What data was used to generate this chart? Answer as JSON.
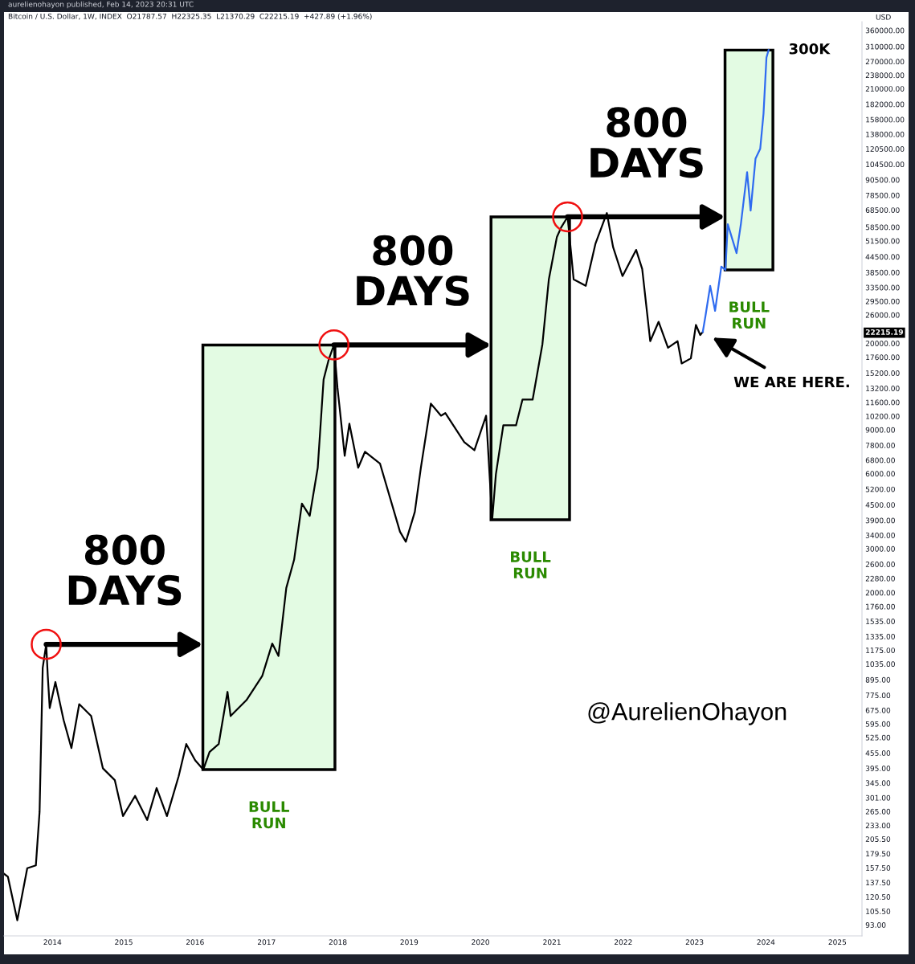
{
  "chart_data": {
    "type": "line",
    "title": "Bitcoin / U.S. Dollar, 1W, INDEX  O21787.57  H22325.35  L21370.29  C22215.19  +427.89 (+1.96%)",
    "subtitle": "aurelienohayon published, Feb 14, 2023 20:31 UTC",
    "ylabel": "USD",
    "log": "y",
    "grid": false,
    "line_style": "solid",
    "marker": "none",
    "xlim": [
      "2013-04-28",
      "2025-05-07"
    ],
    "xticks": [
      "2014",
      "2015",
      "2016",
      "2017",
      "2018",
      "2019",
      "2020",
      "2021",
      "2022",
      "2023",
      "2024",
      "2025"
    ],
    "ylim": [
      84,
      390000
    ],
    "yticks": [
      {
        "value": 360000,
        "label": "360000.00"
      },
      {
        "value": 310000,
        "label": "310000.00"
      },
      {
        "value": 270000,
        "label": "270000.00"
      },
      {
        "value": 238000,
        "label": "238000.00"
      },
      {
        "value": 210000,
        "label": "210000.00"
      },
      {
        "value": 182000,
        "label": "182000.00"
      },
      {
        "value": 158000,
        "label": "158000.00"
      },
      {
        "value": 138000,
        "label": "138000.00"
      },
      {
        "value": 120500,
        "label": "120500.00"
      },
      {
        "value": 104500,
        "label": "104500.00"
      },
      {
        "value": 90500,
        "label": "90500.00"
      },
      {
        "value": 78500,
        "label": "78500.00"
      },
      {
        "value": 68500,
        "label": "68500.00"
      },
      {
        "value": 58500,
        "label": "58500.00"
      },
      {
        "value": 51500,
        "label": "51500.00"
      },
      {
        "value": 44500,
        "label": "44500.00"
      },
      {
        "value": 38500,
        "label": "38500.00"
      },
      {
        "value": 33500,
        "label": "33500.00"
      },
      {
        "value": 29500,
        "label": "29500.00"
      },
      {
        "value": 26000,
        "label": "26000.00"
      },
      {
        "value": 22215.19,
        "label": "22215.19"
      },
      {
        "value": 20000,
        "label": "20000.00"
      },
      {
        "value": 17600,
        "label": "17600.00"
      },
      {
        "value": 15200,
        "label": "15200.00"
      },
      {
        "value": 13200,
        "label": "13200.00"
      },
      {
        "value": 11600,
        "label": "11600.00"
      },
      {
        "value": 10200,
        "label": "10200.00"
      },
      {
        "value": 9000,
        "label": "9000.00"
      },
      {
        "value": 7800,
        "label": "7800.00"
      },
      {
        "value": 6800,
        "label": "6800.00"
      },
      {
        "value": 6000,
        "label": "6000.00"
      },
      {
        "value": 5200,
        "label": "5200.00"
      },
      {
        "value": 4500,
        "label": "4500.00"
      },
      {
        "value": 3900,
        "label": "3900.00"
      },
      {
        "value": 3400,
        "label": "3400.00"
      },
      {
        "value": 3000,
        "label": "3000.00"
      },
      {
        "value": 2600,
        "label": "2600.00"
      },
      {
        "value": 2280,
        "label": "2280.00"
      },
      {
        "value": 2000,
        "label": "2000.00"
      },
      {
        "value": 1760,
        "label": "1760.00"
      },
      {
        "value": 1535,
        "label": "1535.00"
      },
      {
        "value": 1335,
        "label": "1335.00"
      },
      {
        "value": 1175,
        "label": "1175.00"
      },
      {
        "value": 1035,
        "label": "1035.00"
      },
      {
        "value": 895,
        "label": "895.00"
      },
      {
        "value": 775,
        "label": "775.00"
      },
      {
        "value": 675,
        "label": "675.00"
      },
      {
        "value": 595,
        "label": "595.00"
      },
      {
        "value": 525,
        "label": "525.00"
      },
      {
        "value": 455,
        "label": "455.00"
      },
      {
        "value": 395,
        "label": "395.00"
      },
      {
        "value": 345,
        "label": "345.00"
      },
      {
        "value": 301,
        "label": "301.00"
      },
      {
        "value": 265,
        "label": "265.00"
      },
      {
        "value": 233,
        "label": "233.00"
      },
      {
        "value": 205.5,
        "label": "205.50"
      },
      {
        "value": 179.5,
        "label": "179.50"
      },
      {
        "value": 157.5,
        "label": "157.50"
      },
      {
        "value": 137.5,
        "label": "137.50"
      },
      {
        "value": 120.5,
        "label": "120.50"
      },
      {
        "value": 105.5,
        "label": "105.50"
      },
      {
        "value": 93,
        "label": "93.00"
      }
    ],
    "series": [
      {
        "color": "#000000",
        "x": [
          "2013-04-28",
          "2013-05-18",
          "2013-07-05",
          "2013-08-25",
          "2013-10-08",
          "2013-10-27",
          "2013-11-12",
          "2013-11-30",
          "2013-12-08",
          "2013-12-18",
          "2014-01-16",
          "2014-02-27",
          "2014-04-08",
          "2014-05-18",
          "2014-07-18",
          "2014-09-16",
          "2014-11-16",
          "2014-12-28",
          "2015-02-28",
          "2015-05-01",
          "2015-06-18",
          "2015-08-10",
          "2015-10-09",
          "2015-11-17",
          "2016-01-01",
          "2016-02-12",
          "2016-03-15",
          "2016-05-01",
          "2016-06-15",
          "2016-07-01",
          "2016-09-20",
          "2016-12-10",
          "2017-01-30",
          "2017-03-03",
          "2017-04-12",
          "2017-05-22",
          "2017-07-01",
          "2017-08-10",
          "2017-09-20",
          "2017-10-20",
          "2017-11-15",
          "2017-12-12",
          "2017-12-30",
          "2018-01-10",
          "2018-02-05",
          "2018-03-01",
          "2018-04-15",
          "2018-05-20",
          "2018-08-05",
          "2018-11-15",
          "2018-12-15",
          "2019-01-30",
          "2019-03-02",
          "2019-04-22",
          "2019-06-13",
          "2019-07-05",
          "2019-10-10",
          "2019-12-01",
          "2020-01-30",
          "2020-03-01",
          "2020-03-20",
          "2020-04-27",
          "2020-07-01",
          "2020-08-03",
          "2020-09-24",
          "2020-11-13",
          "2020-12-16",
          "2021-01-26",
          "2021-02-17",
          "2021-03-22",
          "2021-04-22",
          "2021-06-23",
          "2021-08-12",
          "2021-10-09",
          "2021-11-10",
          "2021-12-28",
          "2022-03-08",
          "2022-04-08",
          "2022-05-19",
          "2022-07-01",
          "2022-08-18",
          "2022-10-06",
          "2022-10-27",
          "2022-12-13",
          "2023-01-08",
          "2023-01-30",
          "2023-02-12"
        ],
        "values": [
          149,
          145,
          97,
          157,
          161,
          264,
          998,
          1240,
          927,
          689,
          876,
          617,
          476,
          714,
          640,
          395,
          354,
          254,
          306,
          245,
          329,
          254,
          367,
          494,
          426,
          390,
          459,
          494,
          800,
          640,
          741,
          927,
          1250,
          1114,
          2089,
          2709,
          4550,
          4064,
          6340,
          14320,
          17200,
          19700,
          13270,
          11040,
          7080,
          9520,
          6340,
          7350,
          6580,
          3510,
          3200,
          4220,
          6340,
          11460,
          10250,
          10500,
          8030,
          7450,
          10250,
          3920,
          5970,
          9380,
          9380,
          11890,
          11890,
          19800,
          36100,
          53300,
          58300,
          64300,
          36100,
          34000,
          50300,
          66600,
          48600,
          37200,
          47400,
          39700,
          20400,
          24400,
          19200,
          20400,
          16600,
          17400,
          23700,
          21600,
          22215.19
        ]
      },
      {
        "color": "#2f6bf0",
        "x": [
          "2023-02-12",
          "2023-02-26",
          "2023-03-22",
          "2023-04-16",
          "2023-05-18",
          "2023-06-08",
          "2023-06-20",
          "2023-08-04",
          "2023-08-26",
          "2023-09-27",
          "2023-10-15",
          "2023-11-09",
          "2023-12-03",
          "2023-12-20",
          "2024-01-04",
          "2024-01-15"
        ],
        "values": [
          22215.19,
          25800,
          34000,
          27000,
          40600,
          39400,
          60100,
          46000,
          60100,
          97100,
          68100,
          110000,
          120500,
          167000,
          280000,
          300000
        ]
      }
    ],
    "bands": [
      {
        "axis": "x",
        "from": "2016-02-10",
        "to": "2017-12-17",
        "color": "#e3fbe3"
      },
      {
        "axis": "x",
        "from": "2020-02-24",
        "to": "2021-04-01",
        "color": "#e3fbe3"
      },
      {
        "axis": "x",
        "from": "2023-06-06",
        "to": "2024-02-06",
        "color": "#e3fbe3"
      }
    ],
    "annotations": [
      "800\nDAYS",
      "800\nDAYS",
      "800\nDAYS",
      "BULL\nRUN",
      "BULL\nRUN",
      "BULL\nRUN",
      "300K",
      "WE ARE HERE.",
      "@AurelienOhayon"
    ]
  }
}
